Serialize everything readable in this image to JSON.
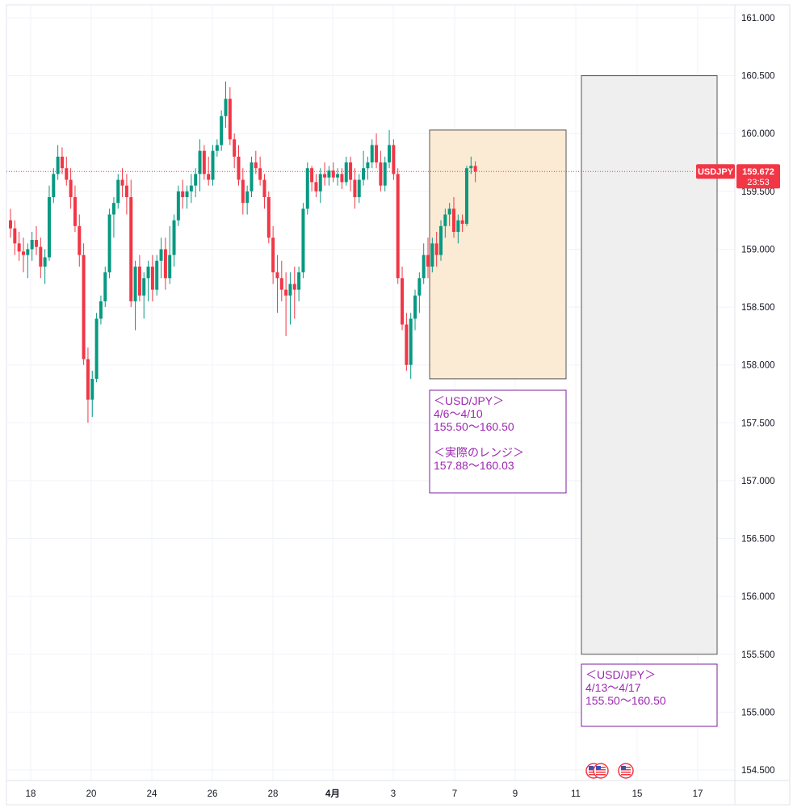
{
  "chart_data": {
    "type": "candlestick",
    "symbol": "USDJPY",
    "last_price": "159.672",
    "countdown": "23:53",
    "ylim": [
      154.5,
      161.0
    ],
    "y_ticks": [
      "161.000",
      "160.500",
      "160.000",
      "159.500",
      "159.000",
      "158.500",
      "158.000",
      "157.500",
      "157.000",
      "156.500",
      "156.000",
      "155.500",
      "155.000",
      "154.500"
    ],
    "x_ticks": [
      {
        "label": "18",
        "bold": false
      },
      {
        "label": "20",
        "bold": false
      },
      {
        "label": "24",
        "bold": false
      },
      {
        "label": "26",
        "bold": false
      },
      {
        "label": "28",
        "bold": false
      },
      {
        "label": "4月",
        "bold": true
      },
      {
        "label": "3",
        "bold": false
      },
      {
        "label": "7",
        "bold": false
      },
      {
        "label": "9",
        "bold": false
      },
      {
        "label": "11",
        "bold": false
      },
      {
        "label": "15",
        "bold": false
      },
      {
        "label": "17",
        "bold": false
      }
    ],
    "grid": true,
    "colors": {
      "up": "#089981",
      "down": "#f23645",
      "last_line": "#f23645",
      "note": "#9c27b0"
    },
    "candles": [
      [
        159.25,
        159.35,
        159.1,
        159.18
      ],
      [
        159.18,
        159.25,
        158.95,
        159.05
      ],
      [
        159.05,
        159.15,
        158.9,
        158.98
      ],
      [
        158.98,
        159.1,
        158.8,
        158.95
      ],
      [
        158.95,
        159.05,
        158.75,
        159.0
      ],
      [
        159.0,
        159.15,
        158.9,
        159.08
      ],
      [
        159.08,
        159.2,
        158.95,
        159.02
      ],
      [
        159.02,
        159.1,
        158.75,
        158.85
      ],
      [
        158.85,
        159.0,
        158.7,
        158.93
      ],
      [
        158.93,
        159.55,
        158.9,
        159.45
      ],
      [
        159.45,
        159.7,
        159.4,
        159.65
      ],
      [
        159.65,
        159.9,
        159.6,
        159.8
      ],
      [
        159.8,
        159.88,
        159.65,
        159.7
      ],
      [
        159.7,
        159.8,
        159.55,
        159.6
      ],
      [
        159.6,
        159.7,
        159.35,
        159.45
      ],
      [
        159.45,
        159.55,
        159.15,
        159.2
      ],
      [
        159.2,
        159.3,
        158.85,
        158.95
      ],
      [
        158.95,
        159.05,
        158.0,
        158.05
      ],
      [
        158.05,
        158.15,
        157.5,
        157.7
      ],
      [
        157.7,
        157.95,
        157.55,
        157.88
      ],
      [
        157.88,
        158.45,
        157.85,
        158.4
      ],
      [
        158.4,
        158.6,
        158.35,
        158.55
      ],
      [
        158.55,
        158.85,
        158.5,
        158.8
      ],
      [
        158.8,
        159.35,
        158.75,
        159.3
      ],
      [
        159.3,
        159.45,
        159.1,
        159.4
      ],
      [
        159.4,
        159.65,
        159.35,
        159.6
      ],
      [
        159.6,
        159.7,
        159.45,
        159.55
      ],
      [
        159.55,
        159.65,
        159.3,
        159.45
      ],
      [
        159.45,
        159.6,
        158.5,
        158.55
      ],
      [
        158.55,
        158.9,
        158.3,
        158.85
      ],
      [
        158.85,
        158.95,
        158.55,
        158.6
      ],
      [
        158.6,
        158.8,
        158.4,
        158.75
      ],
      [
        158.75,
        158.9,
        158.55,
        158.85
      ],
      [
        158.85,
        158.95,
        158.55,
        158.65
      ],
      [
        158.65,
        158.95,
        158.6,
        158.9
      ],
      [
        158.9,
        159.1,
        158.75,
        159.0
      ],
      [
        159.0,
        159.1,
        158.65,
        158.75
      ],
      [
        158.75,
        159.2,
        158.7,
        158.95
      ],
      [
        158.95,
        159.3,
        158.85,
        159.25
      ],
      [
        159.25,
        159.55,
        159.2,
        159.5
      ],
      [
        159.5,
        159.6,
        159.35,
        159.45
      ],
      [
        159.45,
        159.55,
        159.35,
        159.5
      ],
      [
        159.5,
        159.65,
        159.4,
        159.55
      ],
      [
        159.55,
        159.7,
        159.45,
        159.65
      ],
      [
        159.65,
        159.95,
        159.5,
        159.85
      ],
      [
        159.85,
        159.9,
        159.6,
        159.65
      ],
      [
        159.65,
        159.8,
        159.55,
        159.6
      ],
      [
        159.6,
        159.9,
        159.55,
        159.85
      ],
      [
        159.85,
        159.95,
        159.8,
        159.9
      ],
      [
        159.9,
        160.2,
        159.85,
        160.15
      ],
      [
        160.15,
        160.45,
        160.05,
        160.3
      ],
      [
        160.3,
        160.4,
        159.9,
        159.95
      ],
      [
        159.95,
        160.0,
        159.7,
        159.8
      ],
      [
        159.8,
        159.9,
        159.55,
        159.6
      ],
      [
        159.6,
        159.7,
        159.3,
        159.4
      ],
      [
        159.4,
        159.55,
        159.3,
        159.5
      ],
      [
        159.5,
        159.8,
        159.45,
        159.75
      ],
      [
        159.75,
        159.85,
        159.65,
        159.7
      ],
      [
        159.7,
        159.8,
        159.55,
        159.6
      ],
      [
        159.6,
        159.65,
        159.35,
        159.45
      ],
      [
        159.45,
        159.5,
        159.05,
        159.1
      ],
      [
        159.1,
        159.2,
        158.7,
        158.8
      ],
      [
        158.8,
        158.95,
        158.45,
        158.75
      ],
      [
        158.75,
        158.9,
        158.55,
        158.65
      ],
      [
        158.65,
        158.8,
        158.25,
        158.6
      ],
      [
        158.6,
        158.8,
        158.35,
        158.7
      ],
      [
        158.7,
        158.85,
        158.4,
        158.65
      ],
      [
        158.65,
        158.85,
        158.55,
        158.8
      ],
      [
        158.8,
        159.4,
        158.75,
        159.35
      ],
      [
        159.35,
        159.75,
        159.3,
        159.7
      ],
      [
        159.7,
        159.72,
        159.5,
        159.58
      ],
      [
        159.58,
        159.65,
        159.45,
        159.5
      ],
      [
        159.5,
        159.7,
        159.4,
        159.65
      ],
      [
        159.65,
        159.75,
        159.55,
        159.62
      ],
      [
        159.62,
        159.72,
        159.55,
        159.68
      ],
      [
        159.68,
        159.75,
        159.58,
        159.62
      ],
      [
        159.62,
        159.7,
        159.55,
        159.65
      ],
      [
        159.65,
        159.7,
        159.52,
        159.58
      ],
      [
        159.58,
        159.8,
        159.55,
        159.75
      ],
      [
        159.75,
        159.8,
        159.5,
        159.6
      ],
      [
        159.6,
        159.7,
        159.35,
        159.45
      ],
      [
        159.45,
        159.65,
        159.4,
        159.6
      ],
      [
        159.6,
        159.85,
        159.55,
        159.7
      ],
      [
        159.7,
        159.8,
        159.6,
        159.75
      ],
      [
        159.75,
        159.95,
        159.7,
        159.9
      ],
      [
        159.9,
        160.0,
        159.7,
        159.75
      ],
      [
        159.75,
        159.85,
        159.5,
        159.55
      ],
      [
        159.55,
        159.8,
        159.5,
        159.75
      ],
      [
        159.75,
        160.03,
        159.7,
        159.9
      ],
      [
        159.9,
        159.95,
        159.6,
        159.65
      ],
      [
        159.65,
        159.7,
        158.7,
        158.75
      ],
      [
        158.75,
        158.85,
        158.3,
        158.35
      ],
      [
        158.35,
        158.45,
        157.95,
        158.0
      ],
      [
        158.0,
        158.45,
        157.88,
        158.4
      ],
      [
        158.4,
        158.65,
        158.3,
        158.6
      ],
      [
        158.6,
        158.8,
        158.45,
        158.75
      ],
      [
        158.75,
        159.05,
        158.7,
        158.95
      ],
      [
        158.95,
        159.1,
        158.75,
        158.85
      ],
      [
        158.85,
        159.1,
        158.8,
        159.05
      ],
      [
        159.05,
        159.15,
        158.85,
        158.95
      ],
      [
        158.95,
        159.25,
        158.9,
        159.2
      ],
      [
        159.2,
        159.35,
        159.1,
        159.3
      ],
      [
        159.3,
        159.4,
        159.2,
        159.35
      ],
      [
        159.35,
        159.45,
        159.1,
        159.15
      ],
      [
        159.15,
        159.3,
        159.05,
        159.25
      ],
      [
        159.25,
        159.3,
        159.15,
        159.22
      ],
      [
        159.22,
        159.72,
        159.2,
        159.7
      ],
      [
        159.7,
        159.8,
        159.65,
        159.72
      ],
      [
        159.72,
        159.76,
        159.58,
        159.672
      ]
    ]
  },
  "ranges": [
    {
      "kind": "past",
      "price_top": 160.03,
      "price_bottom": 157.88,
      "color": "#fbead4",
      "note": {
        "lines": [
          "＜USD/JPY＞",
          "4/6〜4/10",
          "155.50〜160.50",
          "",
          "＜実際のレンジ＞",
          "157.88〜160.03"
        ]
      }
    },
    {
      "kind": "forecast",
      "price_top": 160.5,
      "price_bottom": 155.5,
      "color": "#efefef",
      "note": {
        "lines": [
          "＜USD/JPY＞",
          "4/13〜4/17",
          "155.50〜160.50"
        ]
      }
    }
  ],
  "event_icons": [
    "us-flag-icon",
    "us-flag-icon",
    "us-flag-icon"
  ]
}
